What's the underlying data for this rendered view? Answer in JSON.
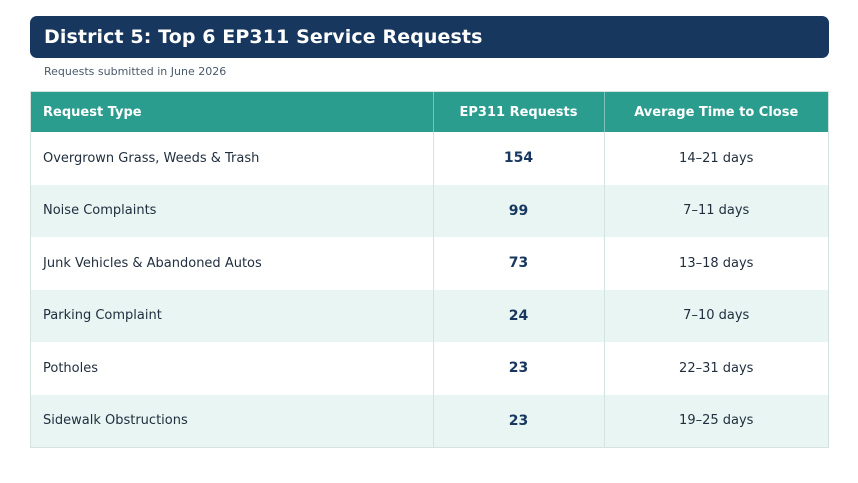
{
  "header": {
    "title": "District 5: Top 6 EP311 Service Requests",
    "subtitle": "Requests submitted in June 2026"
  },
  "table": {
    "columns": [
      "Request Type",
      "EP311 Requests",
      "Average Time to Close"
    ],
    "rows": [
      {
        "type": "Overgrown Grass, Weeds & Trash",
        "requests": "154",
        "time": "14–21 days"
      },
      {
        "type": "Noise Complaints",
        "requests": "99",
        "time": "7–11 days"
      },
      {
        "type": "Junk Vehicles & Abandoned Autos",
        "requests": "73",
        "time": "13–18 days"
      },
      {
        "type": "Parking Complaint",
        "requests": "24",
        "time": "7–10 days"
      },
      {
        "type": "Potholes",
        "requests": "23",
        "time": "22–31 days"
      },
      {
        "type": "Sidewalk Obstructions",
        "requests": "23",
        "time": "19–25 days"
      }
    ]
  },
  "colors": {
    "title_bar": "#17375e",
    "header_row": "#2a9d8f",
    "striped_row": "#e8f5f2"
  }
}
